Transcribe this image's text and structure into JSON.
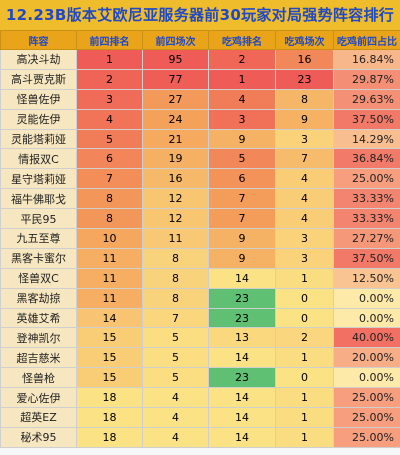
{
  "title": "12.23B版本艾欧尼亚服务器前30玩家对局强势阵容排行",
  "headers": [
    "阵容",
    "前四排名",
    "前四场次",
    "吃鸡排名",
    "吃鸡场次",
    "吃鸡前四占比"
  ],
  "colors": {
    "red": "#ef5b57",
    "orange": "#f4a35a",
    "yellow": "#fbe285",
    "green": "#5fbf73",
    "pale": "#fde9a8"
  },
  "rows": [
    {
      "name": "高决斗劫",
      "top4_rank": "1",
      "top4_games": "95",
      "win_rank": "2",
      "win_games": "16",
      "win_top4_ratio": "16.84%"
    },
    {
      "name": "高斗贾克斯",
      "top4_rank": "2",
      "top4_games": "77",
      "win_rank": "1",
      "win_games": "23",
      "win_top4_ratio": "29.87%"
    },
    {
      "name": "怪兽佐伊",
      "top4_rank": "3",
      "top4_games": "27",
      "win_rank": "4",
      "win_games": "8",
      "win_top4_ratio": "29.63%"
    },
    {
      "name": "灵能佐伊",
      "top4_rank": "4",
      "top4_games": "24",
      "win_rank": "3",
      "win_games": "9",
      "win_top4_ratio": "37.50%"
    },
    {
      "name": "灵能塔莉娅",
      "top4_rank": "5",
      "top4_games": "21",
      "win_rank": "9",
      "win_games": "3",
      "win_top4_ratio": "14.29%"
    },
    {
      "name": "情报双C",
      "top4_rank": "6",
      "top4_games": "19",
      "win_rank": "5",
      "win_games": "7",
      "win_top4_ratio": "36.84%"
    },
    {
      "name": "星守塔莉娅",
      "top4_rank": "7",
      "top4_games": "16",
      "win_rank": "6",
      "win_games": "4",
      "win_top4_ratio": "25.00%"
    },
    {
      "name": "福牛佛耶戈",
      "top4_rank": "8",
      "top4_games": "12",
      "win_rank": "7",
      "win_games": "4",
      "win_top4_ratio": "33.33%"
    },
    {
      "name": "平民95",
      "top4_rank": "8",
      "top4_games": "12",
      "win_rank": "7",
      "win_games": "4",
      "win_top4_ratio": "33.33%"
    },
    {
      "name": "九五至尊",
      "top4_rank": "10",
      "top4_games": "11",
      "win_rank": "9",
      "win_games": "3",
      "win_top4_ratio": "27.27%"
    },
    {
      "name": "黑客卡蜜尔",
      "top4_rank": "11",
      "top4_games": "8",
      "win_rank": "9",
      "win_games": "3",
      "win_top4_ratio": "37.50%"
    },
    {
      "name": "怪兽双C",
      "top4_rank": "11",
      "top4_games": "8",
      "win_rank": "14",
      "win_games": "1",
      "win_top4_ratio": "12.50%"
    },
    {
      "name": "黑客劫掠",
      "top4_rank": "11",
      "top4_games": "8",
      "win_rank": "23",
      "win_games": "0",
      "win_top4_ratio": "0.00%"
    },
    {
      "name": "英雄艾希",
      "top4_rank": "14",
      "top4_games": "7",
      "win_rank": "23",
      "win_games": "0",
      "win_top4_ratio": "0.00%"
    },
    {
      "name": "登神凯尔",
      "top4_rank": "15",
      "top4_games": "5",
      "win_rank": "13",
      "win_games": "2",
      "win_top4_ratio": "40.00%"
    },
    {
      "name": "超吉慈米",
      "top4_rank": "15",
      "top4_games": "5",
      "win_rank": "14",
      "win_games": "1",
      "win_top4_ratio": "20.00%"
    },
    {
      "name": "怪兽枪",
      "top4_rank": "15",
      "top4_games": "5",
      "win_rank": "23",
      "win_games": "0",
      "win_top4_ratio": "0.00%"
    },
    {
      "name": "爱心佐伊",
      "top4_rank": "18",
      "top4_games": "4",
      "win_rank": "14",
      "win_games": "1",
      "win_top4_ratio": "25.00%"
    },
    {
      "name": "超英EZ",
      "top4_rank": "18",
      "top4_games": "4",
      "win_rank": "14",
      "win_games": "1",
      "win_top4_ratio": "25.00%"
    },
    {
      "name": "秘术95",
      "top4_rank": "18",
      "top4_games": "4",
      "win_rank": "14",
      "win_games": "1",
      "win_top4_ratio": "25.00%"
    }
  ]
}
